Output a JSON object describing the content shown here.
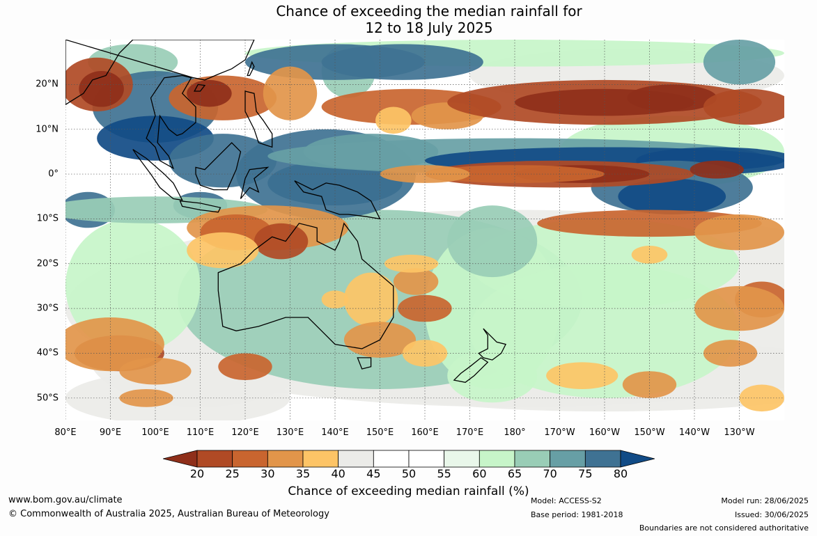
{
  "title": {
    "line1": "Chance of exceeding the median rainfall for",
    "line2": "12 to 18 July 2025"
  },
  "map": {
    "lat_labels": [
      "20°N",
      "10°N",
      "0°",
      "10°S",
      "20°S",
      "30°S",
      "40°S",
      "50°S"
    ],
    "lat_values": [
      20,
      10,
      0,
      -10,
      -20,
      -30,
      -40,
      -50
    ],
    "lon_labels": [
      "80°E",
      "90°E",
      "100°E",
      "110°E",
      "120°E",
      "130°E",
      "140°E",
      "150°E",
      "160°E",
      "170°E",
      "180°",
      "170°W",
      "160°W",
      "150°W",
      "140°W",
      "130°W"
    ],
    "lon_values": [
      80,
      90,
      100,
      110,
      120,
      130,
      140,
      150,
      160,
      170,
      180,
      190,
      200,
      210,
      220,
      230
    ],
    "extent": {
      "lon_min": 80,
      "lon_max": 240,
      "lat_min": -55,
      "lat_max": 30
    },
    "background": "#ffffff",
    "coastline_color": "#000000",
    "gridline_style": "dotted"
  },
  "colorbar": {
    "ticks": [
      "20",
      "25",
      "30",
      "35",
      "40",
      "45",
      "50",
      "55",
      "60",
      "65",
      "70",
      "75",
      "80"
    ],
    "colors": [
      "#8f2f1a",
      "#b04a25",
      "#c9652f",
      "#e2954a",
      "#fdc466",
      "#ebebe8",
      "#ffffff",
      "#ffffff",
      "#e9f7ea",
      "#c7f5c9",
      "#99cdb6",
      "#679fa5",
      "#3f7293",
      "#114b86"
    ],
    "label": "Chance of exceeding median rainfall (%)"
  },
  "footer": {
    "website": "www.bom.gov.au/climate",
    "copyright": "© Commonwealth of Australia 2025, Australian Bureau of Meteorology",
    "model": "Model: ACCESS-S2",
    "base_period": "Base period: 1981-2018",
    "model_run": "Model run: 28/06/2025",
    "issued": "Issued: 30/06/2025",
    "disclaimer": "Boundaries are not considered authoritative"
  }
}
